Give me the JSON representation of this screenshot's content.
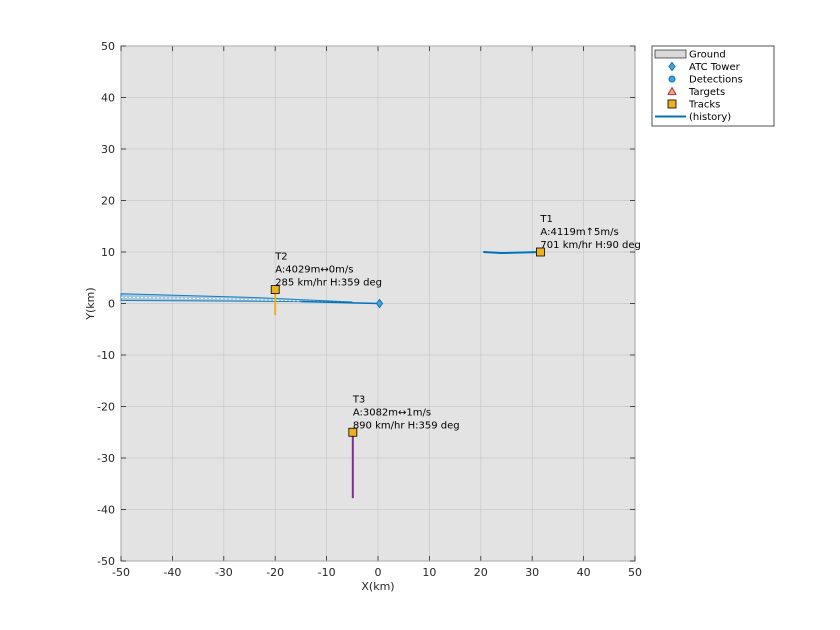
{
  "chart_data": {
    "type": "scatter",
    "xlabel": "X(km)",
    "ylabel": "Y(km)",
    "xlim": [
      -50,
      50
    ],
    "ylim": [
      -50,
      50
    ],
    "xticks": [
      "-50",
      "-40",
      "-30",
      "-20",
      "-10",
      "0",
      "10",
      "20",
      "30",
      "40",
      "50"
    ],
    "yticks": [
      "-50",
      "-40",
      "-30",
      "-20",
      "-10",
      "0",
      "10",
      "20",
      "30",
      "40",
      "50"
    ],
    "grid": true,
    "legend": {
      "placement": "outside-top-right",
      "entries": [
        {
          "label": "Ground",
          "marker": "patch"
        },
        {
          "label": "ATC Tower",
          "marker": "diamond"
        },
        {
          "label": "Detections",
          "marker": "hexagon"
        },
        {
          "label": "Targets",
          "marker": "triangle"
        },
        {
          "label": "Tracks",
          "marker": "square"
        },
        {
          "label": "(history)",
          "marker": "line"
        }
      ]
    },
    "atc_tower": {
      "x": 0.3,
      "y": 0
    },
    "ground_band": [
      [
        -50,
        1.9
      ],
      [
        -25,
        1.2
      ],
      [
        -5,
        0.3
      ],
      [
        -50,
        0.6
      ]
    ],
    "tracks": [
      {
        "id": "T1",
        "label_lines": [
          "T1",
          "A:4119m↑5m/s",
          "701 km/hr  H:90 deg"
        ],
        "x": 31.6,
        "y": 10,
        "history": [
          [
            20.5,
            10
          ],
          [
            24,
            9.8
          ],
          [
            28,
            9.9
          ],
          [
            31.6,
            10
          ]
        ],
        "color": "#0072bd"
      },
      {
        "id": "T2",
        "label_lines": [
          "T2",
          "A:4029m↔0m/s",
          "285 km/hr  H:359 deg"
        ],
        "x": -20,
        "y": 2.7,
        "history": [
          [
            -20,
            -2.2
          ],
          [
            -20,
            0
          ],
          [
            -20,
            2.7
          ]
        ],
        "color": "#edb120"
      },
      {
        "id": "T3",
        "label_lines": [
          "T3",
          "A:3082m↔1m/s",
          "890 km/hr  H:359 deg"
        ],
        "x": -4.9,
        "y": -25,
        "history": [
          [
            -4.9,
            -37.8
          ],
          [
            -4.9,
            -30
          ],
          [
            -4.9,
            -25
          ]
        ],
        "color": "#7e2f8e"
      }
    ],
    "colors": {
      "axes_bg": "#e3e3e3",
      "grid": "#c8c8c8",
      "track_marker": "#edb120",
      "history": "#0072bd",
      "ground": "#d9d9d9",
      "tower": "#0072bd"
    }
  }
}
